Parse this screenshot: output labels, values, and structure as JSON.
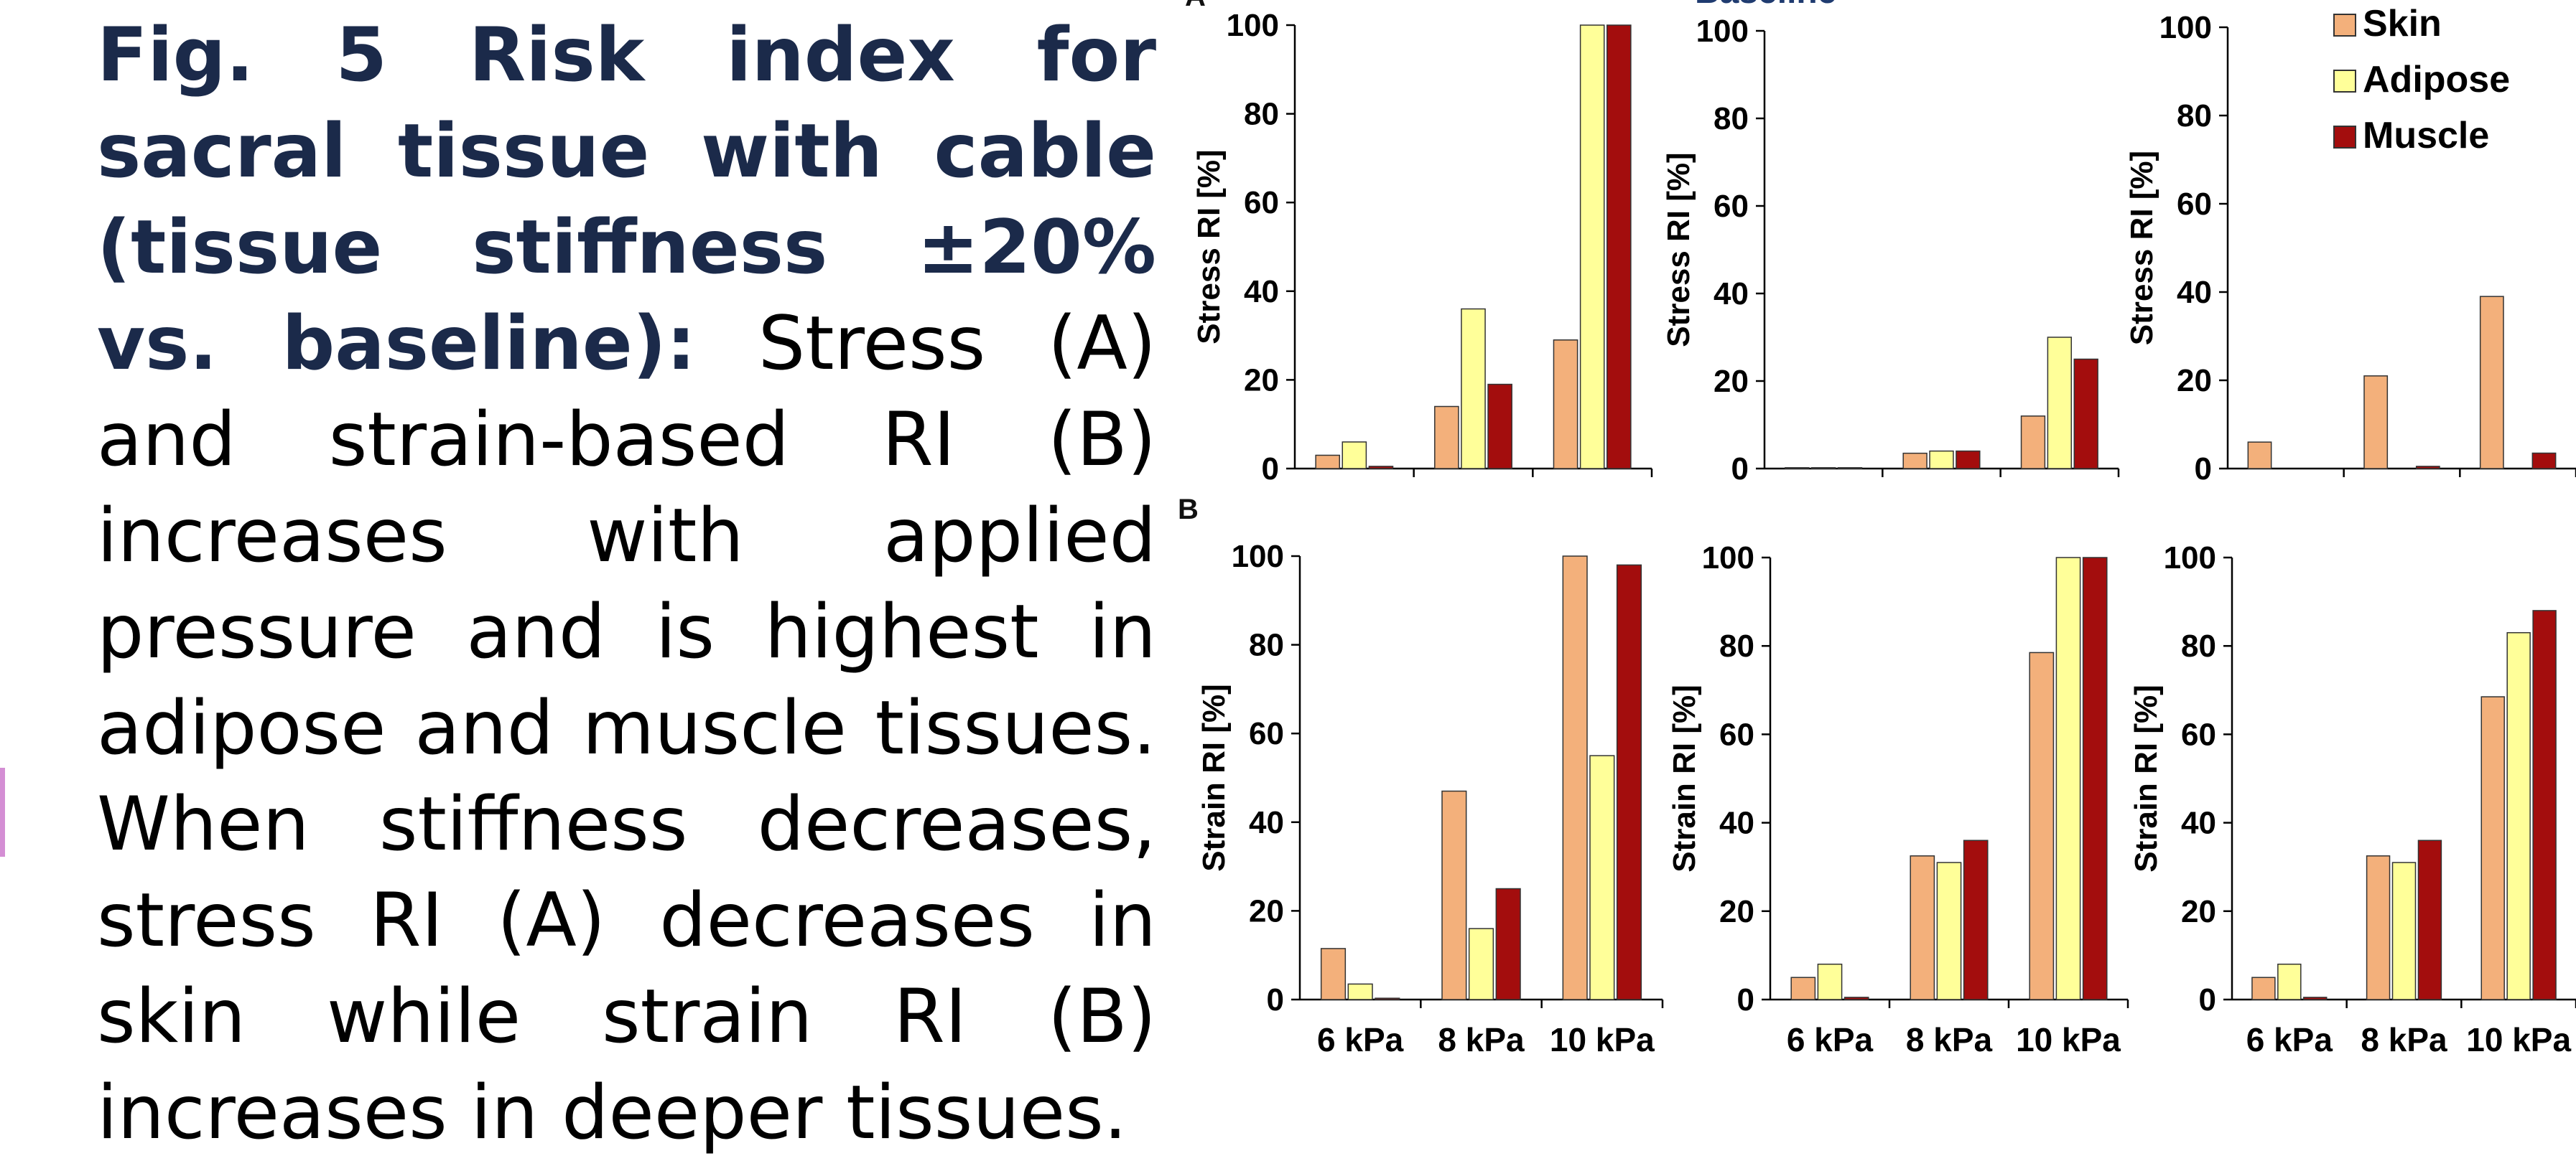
{
  "caption": {
    "title": "Fig. 5 Risk index for sacral tissue with cable (tissue stiffness ±20% vs. baseline):",
    "body": "Stress (A) and strain-based RI (B) increases with applied pressure and is highest in adipose and muscle tissues. When stiffness decreases, stress RI (A) decreases in skin while strain RI (B) increases in deeper tissues."
  },
  "colors": {
    "skin": "#F3B07B",
    "adipose": "#FFFF99",
    "muscle": "#A30D0D",
    "accent": "#D48ED4",
    "outline": "#333333"
  },
  "panel_labels": {
    "a": "A",
    "b": "B"
  },
  "top_title_fragment": "Baseline",
  "legend": [
    {
      "name": "Skin",
      "color": "#F3B07B"
    },
    {
      "name": "Adipose",
      "color": "#FFFF99"
    },
    {
      "name": "Muscle",
      "color": "#A30D0D"
    }
  ],
  "chart_data": [
    {
      "type": "bar",
      "categories": [
        "6 kPa",
        "8 kPa",
        "10 kPa"
      ],
      "ylabel": "Stress RI [%]",
      "ylim": [
        0,
        100
      ],
      "yticks": [
        0,
        20,
        40,
        60,
        80,
        100
      ],
      "series": [
        {
          "name": "Skin",
          "values": [
            3,
            14,
            29
          ]
        },
        {
          "name": "Adipose",
          "values": [
            6,
            36,
            100
          ]
        },
        {
          "name": "Muscle",
          "values": [
            0.5,
            19,
            100
          ]
        }
      ]
    },
    {
      "type": "bar",
      "categories": [
        "6 kPa",
        "8 kPa",
        "10 kPa"
      ],
      "ylabel": "Stress RI [%]",
      "ylim": [
        0,
        100
      ],
      "yticks": [
        0,
        20,
        40,
        60,
        80,
        100
      ],
      "series": [
        {
          "name": "Skin",
          "values": [
            0.2,
            3.5,
            12
          ]
        },
        {
          "name": "Adipose",
          "values": [
            0.2,
            4,
            30
          ]
        },
        {
          "name": "Muscle",
          "values": [
            0.2,
            4,
            25
          ]
        }
      ]
    },
    {
      "type": "bar",
      "categories": [
        "6 kPa",
        "8 kPa",
        "10 kPa"
      ],
      "ylabel": "Stress RI [%]",
      "ylim": [
        0,
        100
      ],
      "yticks": [
        0,
        20,
        40,
        60,
        80,
        100
      ],
      "series": [
        {
          "name": "Skin",
          "values": [
            6,
            21,
            39
          ]
        },
        {
          "name": "Adipose",
          "values": [
            0,
            0,
            0
          ]
        },
        {
          "name": "Muscle",
          "values": [
            0,
            0.5,
            3.5
          ]
        }
      ]
    },
    {
      "type": "bar",
      "categories": [
        "6 kPa",
        "8 kPa",
        "10 kPa"
      ],
      "ylabel": "Strain RI [%]",
      "ylim": [
        0,
        100
      ],
      "yticks": [
        0,
        20,
        40,
        60,
        80,
        100
      ],
      "series": [
        {
          "name": "Skin",
          "values": [
            11.5,
            47,
            100
          ]
        },
        {
          "name": "Adipose",
          "values": [
            3.5,
            16,
            55
          ]
        },
        {
          "name": "Muscle",
          "values": [
            0.3,
            25,
            98
          ]
        }
      ]
    },
    {
      "type": "bar",
      "categories": [
        "6 kPa",
        "8 kPa",
        "10 kPa"
      ],
      "ylabel": "Strain RI [%]",
      "ylim": [
        0,
        100
      ],
      "yticks": [
        0,
        20,
        40,
        60,
        80,
        100
      ],
      "series": [
        {
          "name": "Skin",
          "values": [
            5,
            32.5,
            78.5
          ]
        },
        {
          "name": "Adipose",
          "values": [
            8,
            31,
            100
          ]
        },
        {
          "name": "Muscle",
          "values": [
            0.5,
            36,
            100
          ]
        }
      ]
    },
    {
      "type": "bar",
      "categories": [
        "6 kPa",
        "8 kPa",
        "10 kPa"
      ],
      "ylabel": "Strain RI [%]",
      "ylim": [
        0,
        100
      ],
      "yticks": [
        0,
        20,
        40,
        60,
        80,
        100
      ],
      "series": [
        {
          "name": "Skin",
          "values": [
            5,
            32.5,
            68.5
          ]
        },
        {
          "name": "Adipose",
          "values": [
            8,
            31,
            83
          ]
        },
        {
          "name": "Muscle",
          "values": [
            0.5,
            36,
            88
          ]
        }
      ]
    }
  ]
}
